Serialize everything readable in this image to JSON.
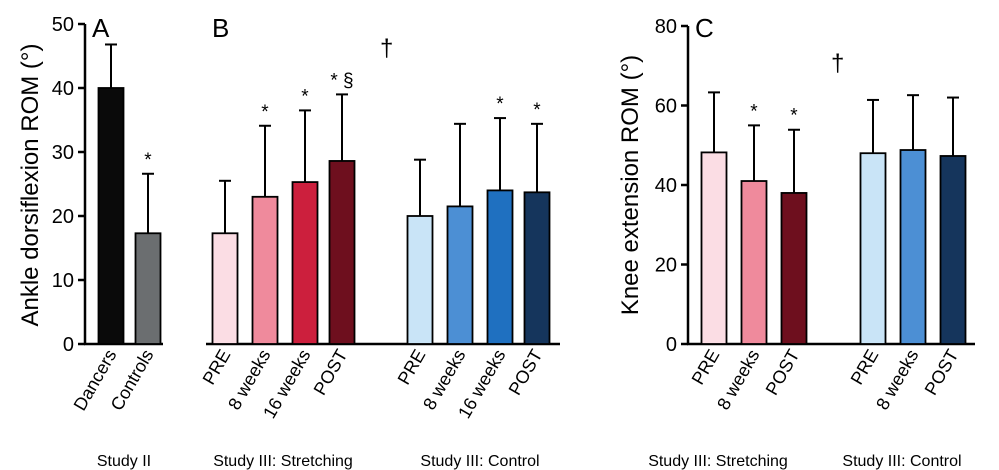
{
  "colors": {
    "black": "#0a0a0a",
    "grey": "#6b6e70",
    "pink_light": "#fbdde4",
    "pink_mid": "#ef8a9c",
    "red": "#cc1f3d",
    "dark_red": "#6e0f1e",
    "blue_light": "#c9e4f7",
    "blue_mid": "#4c8fd4",
    "blue": "#1f70c0",
    "navy": "#15355c"
  },
  "chart_data": [
    {
      "type": "bar",
      "panel_label": "A",
      "ylabel": "Ankle dorsiflexion ROM (°)",
      "ylim": [
        0,
        50
      ],
      "yticks": [
        "0",
        "10",
        "20",
        "30",
        "40",
        "50"
      ],
      "categories": [
        "Dancers",
        "Controls"
      ],
      "values": [
        40,
        17.3
      ],
      "sd": [
        6.8,
        9.3
      ],
      "colors": [
        "#0a0a0a",
        "#6b6e70"
      ],
      "bar_marks": [
        "",
        "*"
      ],
      "group_labels": [
        "Study II"
      ]
    },
    {
      "type": "bar",
      "panel_label": "B",
      "ylim": [
        0,
        50
      ],
      "dagger": "†",
      "groups": [
        {
          "name": "Study III: Stretching",
          "categories": [
            "PRE",
            "8 weeks",
            "16 weeks",
            "POST"
          ],
          "values": [
            17.3,
            23,
            25.3,
            28.6
          ],
          "sd": [
            8.2,
            11.1,
            11.2,
            10.4
          ],
          "colors": [
            "#fbdde4",
            "#ef8a9c",
            "#cc1f3d",
            "#6e0f1e"
          ],
          "bar_marks": [
            "",
            "*",
            "*",
            "* §"
          ]
        },
        {
          "name": "Study III: Control",
          "categories": [
            "PRE",
            "8 weeks",
            "16 weeks",
            "POST"
          ],
          "values": [
            20,
            21.5,
            24,
            23.7
          ],
          "sd": [
            8.8,
            12.9,
            11.3,
            10.7
          ],
          "colors": [
            "#c9e4f7",
            "#4c8fd4",
            "#1f70c0",
            "#15355c"
          ],
          "bar_marks": [
            "",
            "",
            "*",
            "*"
          ]
        }
      ]
    },
    {
      "type": "bar",
      "panel_label": "C",
      "ylabel": "Knee extension ROM (°)",
      "ylim": [
        0,
        80
      ],
      "yticks": [
        "0",
        "20",
        "40",
        "60",
        "80"
      ],
      "dagger": "†",
      "groups": [
        {
          "name": "Study III: Stretching",
          "categories": [
            "PRE",
            "8 weeks",
            "POST"
          ],
          "values": [
            48.2,
            41,
            38
          ],
          "sd": [
            15.1,
            14,
            15.9
          ],
          "colors": [
            "#fbdde4",
            "#ef8a9c",
            "#6e0f1e"
          ],
          "bar_marks": [
            "",
            "*",
            "*"
          ]
        },
        {
          "name": "Study III: Control",
          "categories": [
            "PRE",
            "8 weeks",
            "POST"
          ],
          "values": [
            48,
            48.8,
            47.3
          ],
          "sd": [
            13.4,
            13.8,
            14.7
          ],
          "colors": [
            "#c9e4f7",
            "#4c8fd4",
            "#15355c"
          ],
          "bar_marks": [
            "",
            "",
            ""
          ]
        }
      ]
    }
  ]
}
